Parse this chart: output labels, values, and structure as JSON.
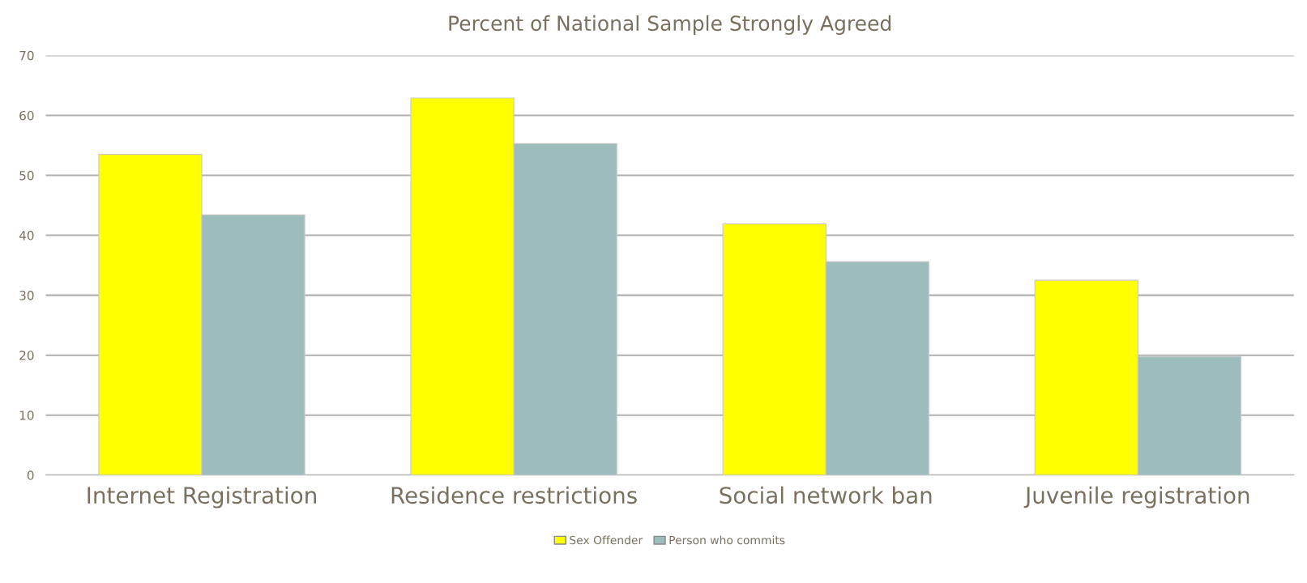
{
  "chart_data": {
    "type": "bar",
    "title": "Percent of National Sample Strongly Agreed",
    "categories": [
      "Internet Registration",
      "Residence restrictions",
      "Social network ban",
      "Juvenile registration"
    ],
    "series": [
      {
        "name": "Sex Offender",
        "color": "#ffff00",
        "values": [
          53.5,
          62.9,
          41.9,
          32.5
        ]
      },
      {
        "name": "Person who commits",
        "color": "#9dbdbd",
        "values": [
          43.4,
          55.3,
          35.6,
          19.8
        ]
      }
    ],
    "ylim": [
      0,
      70
    ],
    "yticks": [
      0,
      10,
      20,
      30,
      40,
      50,
      60,
      70
    ],
    "grid": "y",
    "legend": "bottom"
  }
}
